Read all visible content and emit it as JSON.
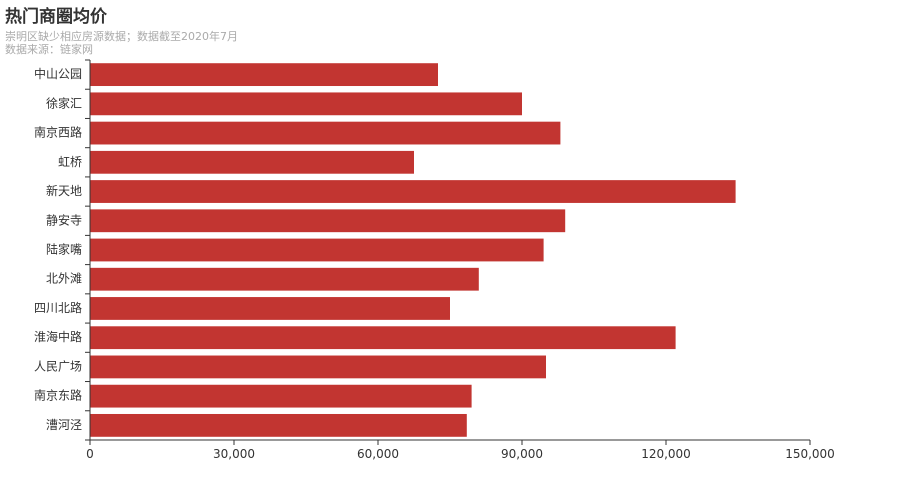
{
  "chart_data": {
    "type": "bar",
    "orientation": "horizontal",
    "title": "热门商圈均价",
    "subtitle_lines": [
      "崇明区缺少相应房源数据；数据截至2020年7月",
      "数据来源：链家网"
    ],
    "categories": [
      "中山公园",
      "徐家汇",
      "南京西路",
      "虹桥",
      "新天地",
      "静安寺",
      "陆家嘴",
      "北外滩",
      "四川北路",
      "淮海中路",
      "人民广场",
      "南京东路",
      "漕河泾"
    ],
    "values": [
      72500,
      90000,
      98000,
      67500,
      134500,
      99000,
      94500,
      81000,
      75000,
      122000,
      95000,
      79500,
      78500
    ],
    "xlim": [
      0,
      150000
    ],
    "xticks": [
      0,
      30000,
      60000,
      90000,
      120000,
      150000
    ],
    "xtick_labels": [
      "0",
      "30,000",
      "60,000",
      "90,000",
      "120,000",
      "150,000"
    ],
    "bar_color": "#c23531",
    "grid": false
  }
}
